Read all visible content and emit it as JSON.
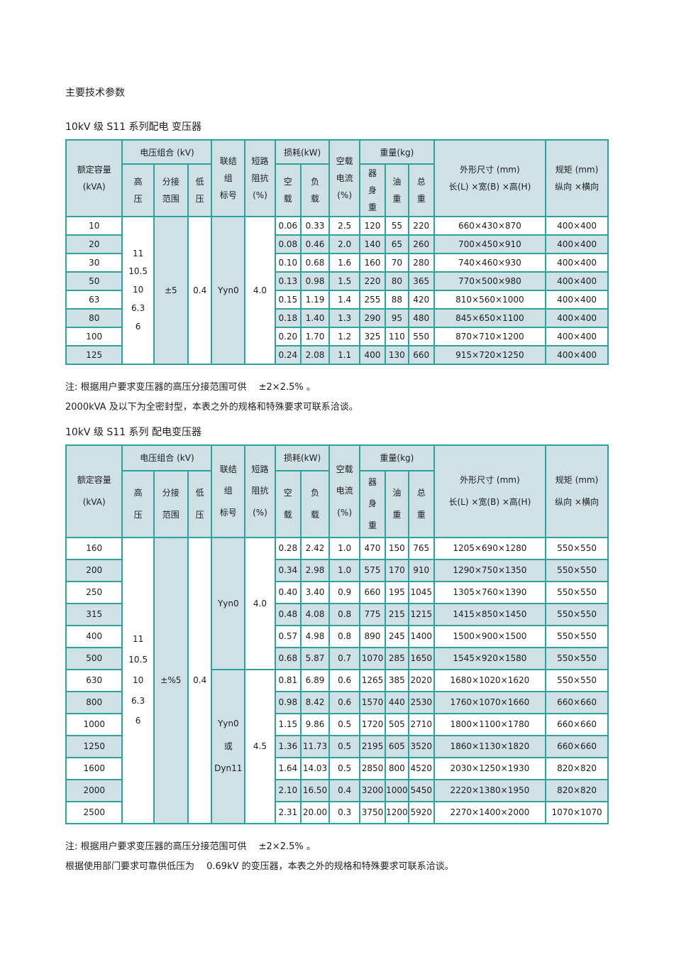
{
  "page": {
    "main_title": "主要技术参数",
    "section1": {
      "title": "10kV 级 S11 系列配电 变压器",
      "notes": [
        "注: 根据用户要求变压器的高压分接范围可供　 ±2×2.5% 。",
        "2000kVA 及以下为全密封型，本表之外的规格和特殊要求可联系洽谈。"
      ]
    },
    "section2": {
      "title": "10kV 级 S11 系列 配电变压器",
      "notes": [
        "注: 根据用户要求变压器的高压分接范围可供　 ±2×2.5% 。",
        "根据使用部门要求可靠供低压为　 0.69kV 的变压器，本表之外的规格和特殊要求可联系洽谈。"
      ]
    }
  },
  "headers": {
    "rated_capacity": "额定容量\n(kVA)",
    "voltage_group": "电压组合 (kV)",
    "hv": "高\n压",
    "tap_range": "分接\n范围",
    "lv": "低\n压",
    "vector_group": "联结\n组\n标号",
    "impedance": "短路\n阻抗\n(%)",
    "loss_group": "损耗(kW)",
    "no_load_loss": "空\n载",
    "load_loss": "负\n载",
    "no_load_current": "空载\n电流\n(%)",
    "weight_group": "重量(kg)",
    "body_weight": "器\n身\n重",
    "oil_weight": "油\n重",
    "total_weight": "总\n重",
    "dimensions": "外形尺寸 (mm)\n长(L) ×宽(B) ×高(H)",
    "track_gauge": "规矩 (mm)\n纵向 ×横向"
  },
  "table1": {
    "hv_values": [
      "11",
      "10.5",
      "10",
      "6.3",
      "6"
    ],
    "tap_range": "±5",
    "lv": "0.4",
    "groups": [
      {
        "start": 0,
        "span": 8,
        "vector": [
          "Yyn0"
        ],
        "impedance": "4.0"
      }
    ],
    "rows": [
      [
        "10",
        "0.06",
        "0.33",
        "2.5",
        "120",
        "55",
        "220",
        "660×430×870",
        "400×400"
      ],
      [
        "20",
        "0.08",
        "0.46",
        "2.0",
        "140",
        "65",
        "260",
        "700×450×910",
        "400×400"
      ],
      [
        "30",
        "0.10",
        "0.68",
        "1.6",
        "160",
        "70",
        "280",
        "740×460×930",
        "400×400"
      ],
      [
        "50",
        "0.13",
        "0.98",
        "1.5",
        "220",
        "80",
        "365",
        "770×500×980",
        "400×400"
      ],
      [
        "63",
        "0.15",
        "1.19",
        "1.4",
        "255",
        "88",
        "420",
        "810×560×1000",
        "400×400"
      ],
      [
        "80",
        "0.18",
        "1.40",
        "1.3",
        "290",
        "95",
        "480",
        "845×650×1100",
        "400×400"
      ],
      [
        "100",
        "0.20",
        "1.70",
        "1.2",
        "325",
        "110",
        "550",
        "870×710×1200",
        "400×400"
      ],
      [
        "125",
        "0.24",
        "2.08",
        "1.1",
        "400",
        "130",
        "660",
        "915×720×1250",
        "400×400"
      ]
    ]
  },
  "table2": {
    "hv_values": [
      "11",
      "10.5",
      "10",
      "6.3",
      "6"
    ],
    "tap_range": "±%5",
    "lv": "0.4",
    "groups": [
      {
        "start": 0,
        "span": 6,
        "vector": [
          "Yyn0"
        ],
        "impedance": "4.0"
      },
      {
        "start": 6,
        "span": 7,
        "vector": [
          "Yyn0",
          "或",
          "Dyn11"
        ],
        "impedance": "4.5"
      }
    ],
    "rows": [
      [
        "160",
        "0.28",
        "2.42",
        "1.0",
        "470",
        "150",
        "765",
        "1205×690×1280",
        "550×550"
      ],
      [
        "200",
        "0.34",
        "2.98",
        "1.0",
        "575",
        "170",
        "910",
        "1290×750×1350",
        "550×550"
      ],
      [
        "250",
        "0.40",
        "3.40",
        "0.9",
        "660",
        "195",
        "1045",
        "1305×760×1390",
        "550×550"
      ],
      [
        "315",
        "0.48",
        "4.08",
        "0.8",
        "775",
        "215",
        "1215",
        "1415×850×1450",
        "550×550"
      ],
      [
        "400",
        "0.57",
        "4.98",
        "0.8",
        "890",
        "245",
        "1400",
        "1500×900×1500",
        "550×550"
      ],
      [
        "500",
        "0.68",
        "5.87",
        "0.7",
        "1070",
        "285",
        "1650",
        "1545×920×1580",
        "550×550"
      ],
      [
        "630",
        "0.81",
        "6.89",
        "0.6",
        "1265",
        "385",
        "2020",
        "1680×1020×1620",
        "550×550"
      ],
      [
        "800",
        "0.98",
        "8.42",
        "0.6",
        "1570",
        "440",
        "2530",
        "1760×1070×1660",
        "660×660"
      ],
      [
        "1000",
        "1.15",
        "9.86",
        "0.5",
        "1720",
        "505",
        "2710",
        "1800×1100×1780",
        "660×660"
      ],
      [
        "1250",
        "1.36",
        "11.73",
        "0.5",
        "2195",
        "605",
        "3520",
        "1860×1130×1820",
        "660×660"
      ],
      [
        "1600",
        "1.64",
        "14.03",
        "0.5",
        "2850",
        "800",
        "4520",
        "2030×1250×1930",
        "820×820"
      ],
      [
        "2000",
        "2.10",
        "16.50",
        "0.4",
        "3200",
        "1000",
        "5450",
        "2220×1380×1950",
        "820×820"
      ],
      [
        "2500",
        "2.31",
        "20.00",
        "0.3",
        "3750",
        "1200",
        "5920",
        "2270×1400×2000",
        "1070×1070"
      ]
    ]
  },
  "colors": {
    "border": "#2fa29b",
    "shade": "#cfe0e7",
    "text": "#1c1c1c"
  }
}
